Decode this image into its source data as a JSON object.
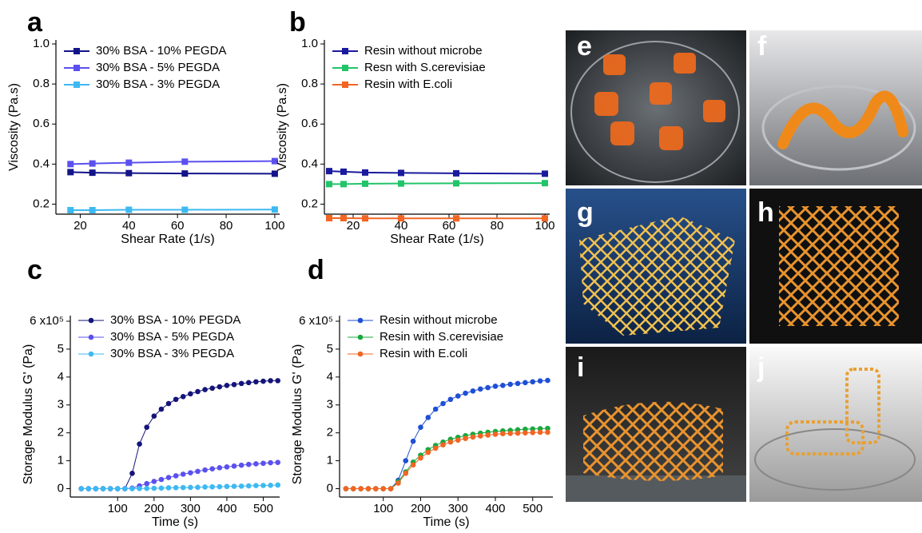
{
  "chart_data": [
    {
      "type": "line",
      "panel": "a",
      "marker": "square",
      "legend": "upper left",
      "xlabel": "Shear Rate (1/s)",
      "ylabel": "Viscosity (Pa.s)",
      "xlim": [
        10,
        102
      ],
      "ylim": [
        0.15,
        1.02
      ],
      "xticks": [
        20,
        40,
        60,
        80,
        100
      ],
      "yticks": [
        0.2,
        0.4,
        0.6,
        0.8,
        {
          "value": 1,
          "label": "1.0"
        }
      ],
      "x": [
        16,
        25,
        40,
        63,
        100
      ],
      "series": [
        {
          "name": "30% BSA - 10% PEGDA",
          "color": "#14148a",
          "values": [
            0.36,
            0.357,
            0.355,
            0.353,
            0.352
          ]
        },
        {
          "name": "30% BSA - 5% PEGDA",
          "color": "#5b50ef",
          "values": [
            0.4,
            0.403,
            0.407,
            0.412,
            0.415
          ]
        },
        {
          "name": "30% BSA - 3% PEGDA",
          "color": "#3db9f2",
          "values": [
            0.17,
            0.17,
            0.172,
            0.172,
            0.173
          ]
        }
      ]
    },
    {
      "type": "line",
      "panel": "b",
      "marker": "square",
      "legend": "upper left",
      "xlabel": "Shear Rate (1/s)",
      "ylabel": "Viscosity (Pa.s)",
      "xlim": [
        8,
        102
      ],
      "ylim": [
        0.15,
        1.02
      ],
      "xticks": [
        20,
        40,
        60,
        80,
        100
      ],
      "yticks": [
        0.2,
        0.4,
        0.6,
        0.8,
        {
          "value": 1,
          "label": "1.0"
        }
      ],
      "x": [
        10,
        16,
        25,
        40,
        63,
        100
      ],
      "series": [
        {
          "name": "Resin without microbe",
          "color": "#1a1a9e",
          "values": [
            0.365,
            0.362,
            0.358,
            0.356,
            0.354,
            0.352
          ]
        },
        {
          "name": "Resn with S.cerevisiae",
          "color": "#22c46a",
          "values": [
            0.3,
            0.3,
            0.302,
            0.303,
            0.304,
            0.305
          ]
        },
        {
          "name": "Resin with E.coli",
          "color": "#f26522",
          "values": [
            0.13,
            0.13,
            0.129,
            0.129,
            0.129,
            0.129
          ]
        }
      ]
    },
    {
      "type": "line",
      "panel": "c",
      "marker": "circle",
      "legend": "upper left",
      "xlabel": "Time (s)",
      "ylabel": "Storage Modulus G' (Pa)",
      "xlim": [
        -30,
        545
      ],
      "ylim": [
        -0.3,
        6.2
      ],
      "xticks": [
        100,
        200,
        300,
        400,
        500
      ],
      "yticks": [
        0,
        1,
        2,
        3,
        4,
        5,
        {
          "value": 6,
          "label": "6 x10⁵"
        }
      ],
      "x": [
        0,
        20,
        40,
        60,
        80,
        100,
        120,
        140,
        160,
        180,
        200,
        220,
        240,
        260,
        280,
        300,
        320,
        340,
        360,
        380,
        400,
        420,
        440,
        460,
        480,
        500,
        520,
        540
      ],
      "series": [
        {
          "name": "30% BSA - 10% PEGDA",
          "color": "#14147a",
          "values": [
            0,
            0,
            0,
            0,
            0,
            0,
            0,
            0.55,
            1.6,
            2.2,
            2.6,
            2.85,
            3.05,
            3.2,
            3.3,
            3.4,
            3.48,
            3.55,
            3.6,
            3.65,
            3.7,
            3.73,
            3.77,
            3.8,
            3.83,
            3.85,
            3.87,
            3.87
          ]
        },
        {
          "name": "30% BSA - 5% PEGDA",
          "color": "#5b50ef",
          "values": [
            0,
            0,
            0,
            0,
            0,
            0,
            0,
            0.02,
            0.1,
            0.18,
            0.26,
            0.33,
            0.4,
            0.46,
            0.52,
            0.57,
            0.62,
            0.67,
            0.71,
            0.75,
            0.78,
            0.81,
            0.84,
            0.87,
            0.89,
            0.91,
            0.93,
            0.94
          ]
        },
        {
          "name": "30% BSA - 3% PEGDA",
          "color": "#3db9f2",
          "values": [
            0,
            0,
            0,
            0,
            0,
            0,
            0,
            0,
            0.005,
            0.01,
            0.015,
            0.02,
            0.03,
            0.035,
            0.04,
            0.045,
            0.05,
            0.06,
            0.065,
            0.07,
            0.08,
            0.085,
            0.09,
            0.1,
            0.11,
            0.115,
            0.12,
            0.13
          ]
        }
      ]
    },
    {
      "type": "line",
      "panel": "d",
      "marker": "circle",
      "legend": "upper left",
      "xlabel": "Time (s)",
      "ylabel": "Storage Modulus G' (Pa)",
      "xlim": [
        -17,
        554
      ],
      "ylim": [
        -0.3,
        6.2
      ],
      "xticks": [
        100,
        200,
        300,
        400,
        500
      ],
      "yticks": [
        0,
        1,
        2,
        3,
        4,
        5,
        {
          "value": 6,
          "label": "6 x10⁵"
        }
      ],
      "x": [
        0,
        20,
        40,
        60,
        80,
        100,
        120,
        140,
        160,
        180,
        200,
        220,
        240,
        260,
        280,
        300,
        320,
        340,
        360,
        380,
        400,
        420,
        440,
        460,
        480,
        500,
        520,
        540
      ],
      "series": [
        {
          "name": "Resin without microbe",
          "color": "#1f4fd6",
          "values": [
            0,
            0,
            0,
            0,
            0,
            0,
            0,
            0.3,
            1.0,
            1.7,
            2.2,
            2.55,
            2.85,
            3.05,
            3.2,
            3.32,
            3.42,
            3.5,
            3.57,
            3.62,
            3.67,
            3.7,
            3.74,
            3.77,
            3.8,
            3.83,
            3.86,
            3.88
          ]
        },
        {
          "name": "Resin with S.cerevisiae",
          "color": "#1aa83e",
          "values": [
            0,
            0,
            0,
            0,
            0,
            0,
            0,
            0.25,
            0.6,
            0.95,
            1.2,
            1.4,
            1.55,
            1.67,
            1.77,
            1.84,
            1.9,
            1.95,
            1.99,
            2.02,
            2.05,
            2.07,
            2.09,
            2.11,
            2.13,
            2.14,
            2.15,
            2.16
          ]
        },
        {
          "name": "Resin with E.coli",
          "color": "#f26522",
          "values": [
            0,
            0,
            0,
            0,
            0,
            0,
            0,
            0.2,
            0.55,
            0.85,
            1.1,
            1.3,
            1.45,
            1.57,
            1.67,
            1.74,
            1.8,
            1.85,
            1.89,
            1.92,
            1.95,
            1.97,
            1.98,
            1.99,
            2.0,
            2.01,
            2.02,
            2.02
          ]
        }
      ]
    }
  ],
  "photos": [
    "e",
    "f",
    "g",
    "h",
    "i",
    "j"
  ]
}
